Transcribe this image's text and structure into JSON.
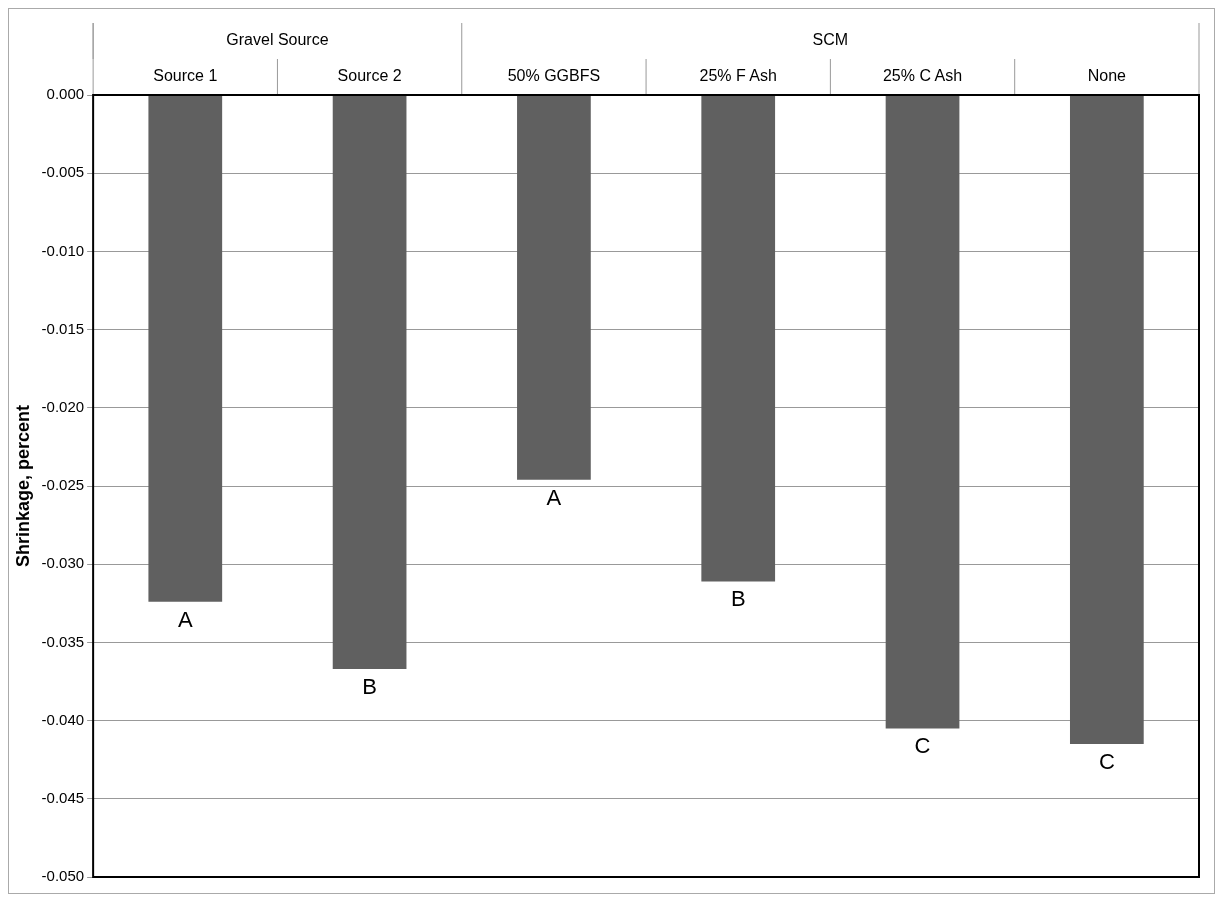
{
  "chart_data": {
    "type": "bar",
    "ylabel": "Shrinkage, percent",
    "categories": [
      "Source 1",
      "Source 2",
      "50% GGBFS",
      "25% F Ash",
      "25% C Ash",
      "None"
    ],
    "values": [
      -0.0324,
      -0.0367,
      -0.0246,
      -0.0311,
      -0.0405,
      -0.0415
    ],
    "color": "#606060",
    "ylim": [
      -0.05,
      0
    ],
    "yticks": [
      {
        "value": -0.05,
        "label": "-0.050"
      },
      {
        "value": -0.045,
        "label": "-0.045"
      },
      {
        "value": -0.04,
        "label": "-0.040"
      },
      {
        "value": -0.035,
        "label": "-0.035"
      },
      {
        "value": -0.03,
        "label": "-0.030"
      },
      {
        "value": -0.025,
        "label": "-0.025"
      },
      {
        "value": -0.02,
        "label": "-0.020"
      },
      {
        "value": -0.015,
        "label": "-0.015"
      },
      {
        "value": -0.01,
        "label": "-0.010"
      },
      {
        "value": -0.005,
        "label": "-0.005"
      },
      {
        "value": 0,
        "label": "0.000"
      }
    ],
    "grid": "y",
    "annotations": [
      "Gravel Source",
      "SCM",
      {
        "text": "A",
        "x": "Source 1",
        "y": -0.0324
      },
      {
        "text": "B",
        "x": "Source 2",
        "y": -0.0367
      },
      {
        "text": "A",
        "x": "50% GGBFS",
        "y": -0.0246
      },
      {
        "text": "B",
        "x": "25% F Ash",
        "y": -0.0311
      },
      {
        "text": "C",
        "x": "25% C Ash",
        "y": -0.0405
      },
      {
        "text": "C",
        "x": "None",
        "y": -0.0415
      }
    ]
  }
}
